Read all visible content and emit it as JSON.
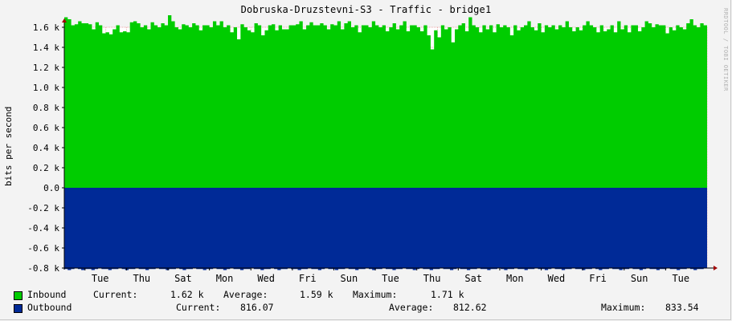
{
  "title": "Dobruska-Druzstevni-S3 - Traffic - bridge1",
  "watermark": "RRDTOOL / TOBI OETIKER",
  "colors": {
    "inbound": "#00cc00",
    "outbound": "#002a97",
    "background": "#f3f3f3",
    "grid": "#e07070"
  },
  "chart_data": {
    "type": "area",
    "ylabel": "bits per second",
    "ylim": [
      -0.8,
      1.6
    ],
    "yticks": [
      {
        "value": 1.6,
        "label": "1.6 k"
      },
      {
        "value": 1.4,
        "label": "1.4 k"
      },
      {
        "value": 1.2,
        "label": "1.2 k"
      },
      {
        "value": 1.0,
        "label": "1.0 k"
      },
      {
        "value": 0.8,
        "label": "0.8 k"
      },
      {
        "value": 0.6,
        "label": "0.6 k"
      },
      {
        "value": 0.4,
        "label": "0.4 k"
      },
      {
        "value": 0.2,
        "label": "0.2 k"
      },
      {
        "value": 0.0,
        "label": "0.0"
      },
      {
        "value": -0.2,
        "label": "-0.2 k"
      },
      {
        "value": -0.4,
        "label": "-0.4 k"
      },
      {
        "value": -0.6,
        "label": "-0.6 k"
      },
      {
        "value": -0.8,
        "label": "-0.8 k"
      }
    ],
    "xticks": [
      "Tue",
      "Thu",
      "Sat",
      "Mon",
      "Wed",
      "Fri",
      "Sun",
      "Tue",
      "Thu",
      "Sat",
      "Mon",
      "Wed",
      "Fri",
      "Sun",
      "Tue"
    ],
    "grid": true,
    "series": [
      {
        "name": "Inbound",
        "values": [
          1.7,
          1.68,
          1.62,
          1.63,
          1.66,
          1.64,
          1.64,
          1.63,
          1.58,
          1.65,
          1.62,
          1.54,
          1.55,
          1.53,
          1.58,
          1.62,
          1.55,
          1.56,
          1.55,
          1.65,
          1.66,
          1.64,
          1.6,
          1.62,
          1.58,
          1.65,
          1.62,
          1.6,
          1.64,
          1.62,
          1.72,
          1.66,
          1.6,
          1.58,
          1.63,
          1.62,
          1.6,
          1.64,
          1.62,
          1.57,
          1.62,
          1.62,
          1.6,
          1.66,
          1.62,
          1.66,
          1.6,
          1.62,
          1.55,
          1.6,
          1.48,
          1.63,
          1.6,
          1.57,
          1.55,
          1.64,
          1.62,
          1.52,
          1.57,
          1.62,
          1.63,
          1.57,
          1.62,
          1.58,
          1.58,
          1.62,
          1.62,
          1.63,
          1.66,
          1.58,
          1.62,
          1.65,
          1.62,
          1.62,
          1.64,
          1.62,
          1.58,
          1.63,
          1.62,
          1.66,
          1.58,
          1.64,
          1.66,
          1.6,
          1.62,
          1.55,
          1.62,
          1.62,
          1.6,
          1.66,
          1.62,
          1.6,
          1.62,
          1.56,
          1.6,
          1.64,
          1.58,
          1.62,
          1.66,
          1.56,
          1.62,
          1.62,
          1.6,
          1.56,
          1.62,
          1.52,
          1.38,
          1.57,
          1.5,
          1.62,
          1.58,
          1.6,
          1.45,
          1.58,
          1.62,
          1.64,
          1.56,
          1.7,
          1.62,
          1.6,
          1.55,
          1.62,
          1.58,
          1.62,
          1.55,
          1.63,
          1.6,
          1.62,
          1.6,
          1.52,
          1.62,
          1.57,
          1.6,
          1.62,
          1.66,
          1.6,
          1.57,
          1.64,
          1.55,
          1.62,
          1.6,
          1.62,
          1.58,
          1.62,
          1.6,
          1.66,
          1.6,
          1.56,
          1.6,
          1.57,
          1.62,
          1.66,
          1.62,
          1.6,
          1.55,
          1.62,
          1.56,
          1.58,
          1.62,
          1.55,
          1.66,
          1.58,
          1.62,
          1.55,
          1.62,
          1.62,
          1.56,
          1.6,
          1.66,
          1.64,
          1.6,
          1.63,
          1.62,
          1.62,
          1.54,
          1.6,
          1.57,
          1.62,
          1.6,
          1.58,
          1.64,
          1.68,
          1.62,
          1.6,
          1.64,
          1.62
        ]
      },
      {
        "name": "Outbound",
        "values": [
          -0.81,
          -0.82,
          -0.81,
          -0.8,
          -0.81,
          -0.82,
          -0.81,
          -0.81,
          -0.82,
          -0.81,
          -0.8,
          -0.81,
          -0.81,
          -0.82,
          -0.81,
          -0.81,
          -0.8,
          -0.81,
          -0.82,
          -0.81,
          -0.81,
          -0.8,
          -0.81,
          -0.81,
          -0.82,
          -0.81,
          -0.81,
          -0.8,
          -0.81,
          -0.81,
          -0.82,
          -0.81,
          -0.81,
          -0.8,
          -0.81,
          -0.82,
          -0.81,
          -0.81,
          -0.8,
          -0.81,
          -0.81,
          -0.82,
          -0.81,
          -0.81,
          -0.8,
          -0.81,
          -0.81,
          -0.82,
          -0.81,
          -0.8,
          -0.81,
          -0.81,
          -0.82,
          -0.81,
          -0.81,
          -0.8,
          -0.81,
          -0.81,
          -0.82,
          -0.81,
          -0.81,
          -0.8,
          -0.81,
          -0.82,
          -0.81,
          -0.81,
          -0.8,
          -0.81,
          -0.81,
          -0.82,
          -0.81,
          -0.81,
          -0.8,
          -0.81,
          -0.81,
          -0.82,
          -0.81,
          -0.8,
          -0.81,
          -0.81,
          -0.82,
          -0.81,
          -0.81,
          -0.8,
          -0.81,
          -0.81,
          -0.82,
          -0.81,
          -0.81,
          -0.8,
          -0.81,
          -0.82,
          -0.81,
          -0.81,
          -0.8,
          -0.81,
          -0.81,
          -0.82,
          -0.81,
          -0.81,
          -0.8,
          -0.81,
          -0.81,
          -0.82,
          -0.81,
          -0.8,
          -0.81,
          -0.81,
          -0.82,
          -0.81,
          -0.81,
          -0.8,
          -0.81,
          -0.81,
          -0.82,
          -0.81,
          -0.8,
          -0.81,
          -0.81,
          -0.82,
          -0.81,
          -0.81,
          -0.8,
          -0.81,
          -0.81,
          -0.82,
          -0.81,
          -0.81,
          -0.8,
          -0.81,
          -0.82,
          -0.81,
          -0.81,
          -0.8,
          -0.81,
          -0.81,
          -0.82,
          -0.81,
          -0.81,
          -0.8,
          -0.81,
          -0.81,
          -0.82,
          -0.81,
          -0.8,
          -0.81,
          -0.81,
          -0.82,
          -0.81,
          -0.81,
          -0.8,
          -0.81,
          -0.81,
          -0.82,
          -0.81,
          -0.81,
          -0.8,
          -0.81,
          -0.82,
          -0.81,
          -0.81,
          -0.8,
          -0.81,
          -0.81,
          -0.82,
          -0.81,
          -0.81,
          -0.8,
          -0.81,
          -0.81,
          -0.82,
          -0.81,
          -0.8,
          -0.81,
          -0.81,
          -0.82,
          -0.81,
          -0.81,
          -0.8,
          -0.81,
          -0.81,
          -0.82,
          -0.81,
          -0.81,
          -0.8,
          -0.81,
          -0.82,
          -0.81,
          -0.81,
          -0.8
        ]
      }
    ]
  },
  "legend": {
    "inbound": {
      "name": "Inbound",
      "current_label": "Current:",
      "current": "1.62 k",
      "average_label": "Average:",
      "average": "1.59 k",
      "maximum_label": "Maximum:",
      "maximum": "1.71 k"
    },
    "outbound": {
      "name": "Outbound",
      "current_label": "Current:",
      "current": "816.07",
      "average_label": "Average:",
      "average": "812.62",
      "maximum_label": "Maximum:",
      "maximum": "833.54"
    }
  }
}
